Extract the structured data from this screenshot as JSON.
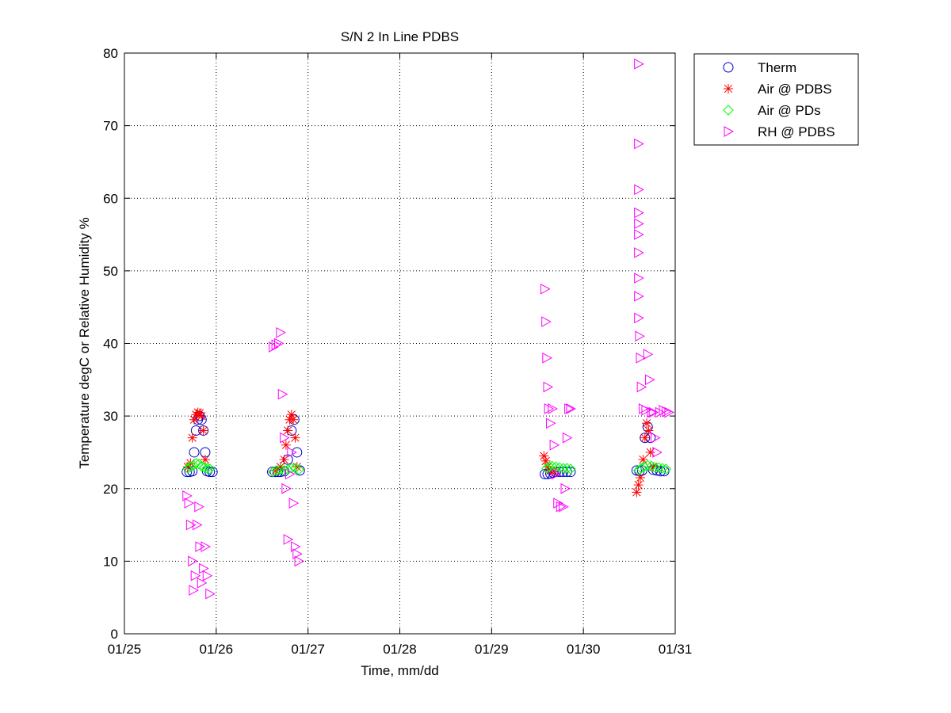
{
  "chart_data": {
    "type": "scatter",
    "title": "S/N 2 In Line PDBS",
    "xlabel": "Time, mm/dd",
    "ylabel": "Temperature degC or Relative Humidity %",
    "xlim": [
      0,
      6
    ],
    "ylim": [
      0,
      80
    ],
    "x_ticks": [
      0,
      1,
      2,
      3,
      4,
      5,
      6
    ],
    "x_tick_labels": [
      "01/25",
      "01/26",
      "01/27",
      "01/28",
      "01/29",
      "01/30",
      "01/31"
    ],
    "y_ticks": [
      0,
      10,
      20,
      30,
      40,
      50,
      60,
      70,
      80
    ],
    "y_tick_labels": [
      "0",
      "10",
      "20",
      "30",
      "40",
      "50",
      "60",
      "70",
      "80"
    ],
    "grid": true,
    "legend_position": "outside-top-right",
    "x_unit": "days since 01/25 00:00",
    "series": [
      {
        "name": "Therm",
        "marker": "circle",
        "color": "#0000CC",
        "points": [
          [
            0.68,
            22.3
          ],
          [
            0.71,
            22.3
          ],
          [
            0.74,
            22.4
          ],
          [
            0.76,
            25
          ],
          [
            0.78,
            28
          ],
          [
            0.8,
            29.5
          ],
          [
            0.82,
            30
          ],
          [
            0.84,
            29.5
          ],
          [
            0.86,
            28
          ],
          [
            0.88,
            25
          ],
          [
            0.9,
            22.4
          ],
          [
            0.93,
            22.3
          ],
          [
            0.96,
            22.3
          ],
          [
            1.61,
            22.3
          ],
          [
            1.64,
            22.3
          ],
          [
            1.67,
            22.3
          ],
          [
            1.7,
            22.3
          ],
          [
            1.74,
            22.4
          ],
          [
            1.78,
            24
          ],
          [
            1.82,
            28
          ],
          [
            1.85,
            29.5
          ],
          [
            1.88,
            25
          ],
          [
            1.91,
            22.5
          ],
          [
            4.58,
            22
          ],
          [
            4.61,
            22
          ],
          [
            4.64,
            22.1
          ],
          [
            4.67,
            22.2
          ],
          [
            4.7,
            22.3
          ],
          [
            4.74,
            22.3
          ],
          [
            4.78,
            22.3
          ],
          [
            4.82,
            22.3
          ],
          [
            4.86,
            22.3
          ],
          [
            5.58,
            22.5
          ],
          [
            5.61,
            22.4
          ],
          [
            5.64,
            22.5
          ],
          [
            5.67,
            27
          ],
          [
            5.7,
            28.5
          ],
          [
            5.73,
            27
          ],
          [
            5.76,
            22.6
          ],
          [
            5.8,
            22.5
          ],
          [
            5.84,
            22.4
          ],
          [
            5.88,
            22.4
          ]
        ]
      },
      {
        "name": "Air @ PDBS",
        "marker": "asterisk",
        "color": "#FF0000",
        "points": [
          [
            0.69,
            23
          ],
          [
            0.72,
            23.5
          ],
          [
            0.74,
            27
          ],
          [
            0.76,
            29.5
          ],
          [
            0.78,
            30.2
          ],
          [
            0.8,
            30.5
          ],
          [
            0.82,
            30.4
          ],
          [
            0.84,
            30
          ],
          [
            0.86,
            28
          ],
          [
            0.88,
            24
          ],
          [
            1.65,
            22.5
          ],
          [
            1.7,
            23
          ],
          [
            1.74,
            24
          ],
          [
            1.76,
            26
          ],
          [
            1.78,
            28
          ],
          [
            1.8,
            29.5
          ],
          [
            1.82,
            30.2
          ],
          [
            1.84,
            29.5
          ],
          [
            1.86,
            27
          ],
          [
            1.88,
            23
          ],
          [
            4.57,
            24.5
          ],
          [
            4.59,
            23.8
          ],
          [
            4.61,
            23
          ],
          [
            4.64,
            22.5
          ],
          [
            4.68,
            22.4
          ],
          [
            5.58,
            19.5
          ],
          [
            5.6,
            20.5
          ],
          [
            5.62,
            21.5
          ],
          [
            5.65,
            24
          ],
          [
            5.67,
            27
          ],
          [
            5.69,
            29
          ],
          [
            5.71,
            28
          ],
          [
            5.73,
            25
          ],
          [
            5.76,
            23
          ]
        ]
      },
      {
        "name": "Air @ PDs",
        "marker": "diamond",
        "color": "#00FF00",
        "points": [
          [
            0.69,
            22.8
          ],
          [
            0.72,
            23
          ],
          [
            0.75,
            23.2
          ],
          [
            0.78,
            23.5
          ],
          [
            0.81,
            23.4
          ],
          [
            0.84,
            23.1
          ],
          [
            0.87,
            22.9
          ],
          [
            0.9,
            22.8
          ],
          [
            0.93,
            22.7
          ],
          [
            1.62,
            22.3
          ],
          [
            1.66,
            22.5
          ],
          [
            1.7,
            22.6
          ],
          [
            1.74,
            22.5
          ],
          [
            1.78,
            22.6
          ],
          [
            1.82,
            22.8
          ],
          [
            1.86,
            22.8
          ],
          [
            1.9,
            22.6
          ],
          [
            4.6,
            22.8
          ],
          [
            4.63,
            23
          ],
          [
            4.66,
            23.1
          ],
          [
            4.7,
            23
          ],
          [
            4.74,
            22.9
          ],
          [
            4.78,
            22.8
          ],
          [
            4.82,
            22.8
          ],
          [
            4.86,
            22.7
          ],
          [
            5.6,
            22.5
          ],
          [
            5.63,
            22.8
          ],
          [
            5.66,
            23
          ],
          [
            5.7,
            23.2
          ],
          [
            5.74,
            23.1
          ],
          [
            5.78,
            22.9
          ],
          [
            5.82,
            22.9
          ],
          [
            5.86,
            22.8
          ],
          [
            5.9,
            22.7
          ]
        ]
      },
      {
        "name": "RH @ PDBS",
        "marker": "triangle-right",
        "color": "#FF00FF",
        "points": [
          [
            0.68,
            19
          ],
          [
            0.7,
            18
          ],
          [
            0.72,
            15
          ],
          [
            0.74,
            10
          ],
          [
            0.75,
            6
          ],
          [
            0.77,
            8
          ],
          [
            0.79,
            15
          ],
          [
            0.81,
            17.5
          ],
          [
            0.82,
            12
          ],
          [
            0.84,
            7
          ],
          [
            0.86,
            9
          ],
          [
            0.88,
            12
          ],
          [
            0.9,
            8
          ],
          [
            0.93,
            5.5
          ],
          [
            1.62,
            39.5
          ],
          [
            1.65,
            39.8
          ],
          [
            1.68,
            40
          ],
          [
            1.7,
            41.5
          ],
          [
            1.72,
            33
          ],
          [
            1.74,
            27
          ],
          [
            1.76,
            20
          ],
          [
            1.78,
            13
          ],
          [
            1.8,
            22
          ],
          [
            1.82,
            25
          ],
          [
            1.84,
            18
          ],
          [
            1.86,
            12
          ],
          [
            1.88,
            11
          ],
          [
            1.9,
            10
          ],
          [
            4.58,
            47.5
          ],
          [
            4.59,
            43
          ],
          [
            4.6,
            38
          ],
          [
            4.61,
            34
          ],
          [
            4.62,
            31
          ],
          [
            4.64,
            29
          ],
          [
            4.66,
            31
          ],
          [
            4.68,
            26
          ],
          [
            4.7,
            22
          ],
          [
            4.72,
            18
          ],
          [
            4.75,
            17.5
          ],
          [
            4.78,
            17.5
          ],
          [
            4.8,
            20
          ],
          [
            4.82,
            27
          ],
          [
            4.84,
            31
          ],
          [
            4.86,
            31
          ],
          [
            5.6,
            78.5
          ],
          [
            5.6,
            67.5
          ],
          [
            5.6,
            61.2
          ],
          [
            5.6,
            58
          ],
          [
            5.6,
            56.5
          ],
          [
            5.6,
            55
          ],
          [
            5.6,
            52.5
          ],
          [
            5.6,
            49
          ],
          [
            5.6,
            46.5
          ],
          [
            5.6,
            43.5
          ],
          [
            5.61,
            41
          ],
          [
            5.62,
            38
          ],
          [
            5.63,
            34
          ],
          [
            5.65,
            31
          ],
          [
            5.68,
            30.8
          ],
          [
            5.7,
            38.5
          ],
          [
            5.72,
            35
          ],
          [
            5.74,
            30.5
          ],
          [
            5.76,
            30.5
          ],
          [
            5.78,
            27
          ],
          [
            5.8,
            25
          ],
          [
            5.83,
            30.5
          ],
          [
            5.87,
            30.8
          ],
          [
            5.9,
            30.6
          ],
          [
            5.93,
            30.5
          ]
        ]
      }
    ]
  }
}
